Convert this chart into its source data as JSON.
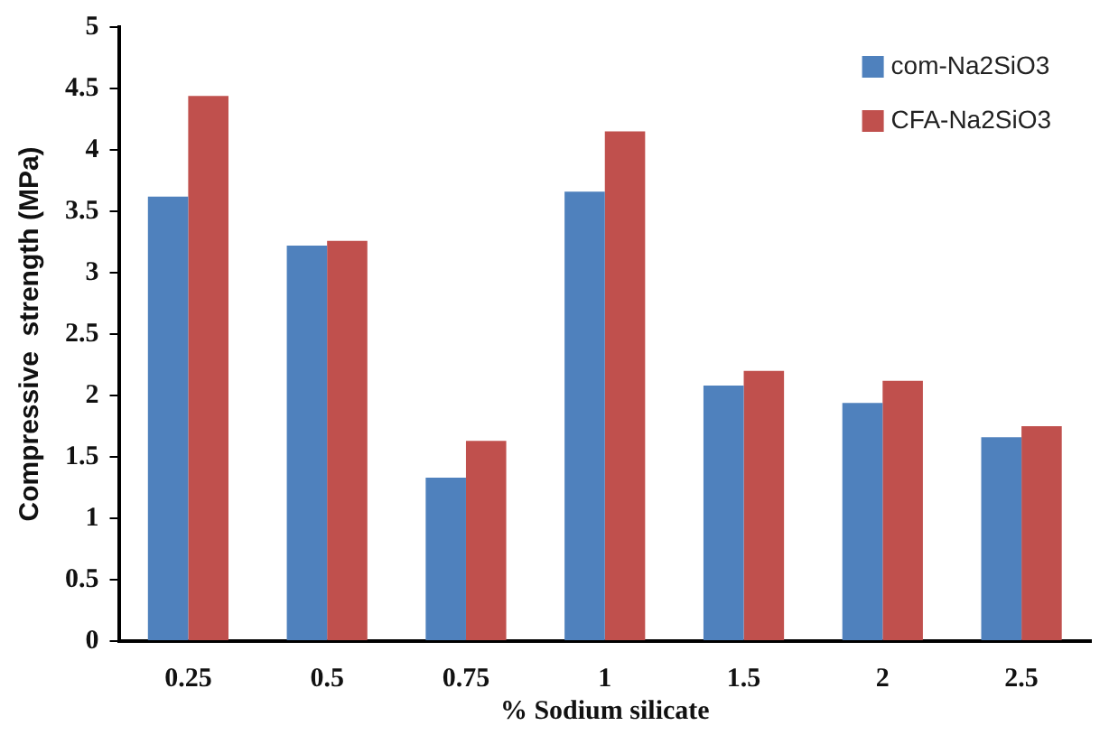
{
  "chart_data": {
    "type": "bar",
    "xlabel": "% Sodium silicate",
    "ylabel": "Compressive  strength (MPa)",
    "categories": [
      "0.25",
      "0.5",
      "0.75",
      "1",
      "1.5",
      "2",
      "2.5"
    ],
    "series": [
      {
        "name": "com-Na2SiO3",
        "color": "#4f81bd",
        "values": [
          3.62,
          3.22,
          1.33,
          3.66,
          2.08,
          1.94,
          1.66
        ]
      },
      {
        "name": "CFA-Na2SiO3",
        "color": "#c0504d",
        "values": [
          4.44,
          3.26,
          1.63,
          4.15,
          2.2,
          2.12,
          1.75
        ]
      }
    ],
    "ylim": [
      0,
      5
    ],
    "yticks": [
      0,
      0.5,
      1,
      1.5,
      2,
      2.5,
      3,
      3.5,
      4,
      4.5,
      5
    ],
    "grid": false,
    "legend": "top right"
  }
}
